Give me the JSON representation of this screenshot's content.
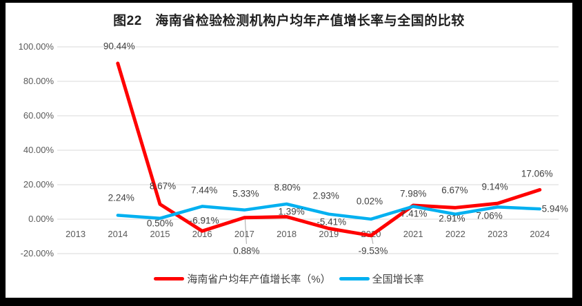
{
  "page": {
    "background": "#000000",
    "panel_background": "#FFFFFF"
  },
  "chart_data": {
    "type": "line",
    "title": "图22　海南省检验检测机构户均年产值增长率与全国的比较",
    "categories": [
      "2013",
      "2014",
      "2015",
      "2016",
      "2017",
      "2018",
      "2019",
      "2020",
      "2021",
      "2022",
      "2023",
      "2024"
    ],
    "series": [
      {
        "name": "海南省户均年产值增长率（%）",
        "color": "#FF0000",
        "values": [
          null,
          90.44,
          8.67,
          -6.91,
          0.88,
          1.39,
          -5.41,
          -9.53,
          7.98,
          6.67,
          9.14,
          17.06
        ],
        "point_labels": [
          "",
          "90.44%",
          "8.67%",
          "-6.91%",
          "0.88%",
          "1.39%",
          "-5.41%",
          "-9.53%",
          "7.98%",
          "6.67%",
          "9.14%",
          "17.06%"
        ]
      },
      {
        "name": "全国增长率",
        "color": "#00B0F0",
        "values": [
          null,
          2.24,
          0.5,
          7.44,
          5.33,
          8.8,
          2.93,
          0.02,
          7.41,
          2.91,
          7.06,
          5.94
        ],
        "point_labels": [
          "",
          "2.24%",
          "0.50%",
          "7.44%",
          "5.33%",
          "8.80%",
          "2.93%",
          "0.02%",
          "7.41%",
          "2.91%",
          "7.06%",
          "5.94%"
        ]
      }
    ],
    "y_axis": {
      "min": -20,
      "max": 100,
      "step": 20,
      "tick_labels": [
        "100.00%",
        "80.00%",
        "60.00%",
        "40.00%",
        "20.00%",
        "0.00%",
        "-20.00%"
      ]
    },
    "grid": true,
    "legend_position": "bottom",
    "colors": {
      "gridline": "#D9D9D9",
      "axis_text": "#595959",
      "label_text": "#404040",
      "leader_line": "#A6A6A6"
    },
    "layout_hints": {
      "label_offsets_series0": [
        null,
        [
          2,
          -25
        ],
        [
          4,
          -26
        ],
        [
          3,
          -15
        ],
        [
          3,
          48
        ],
        [
          7,
          -8
        ],
        [
          4,
          -10
        ],
        [
          3,
          22
        ],
        [
          0,
          -17
        ],
        [
          -1,
          -25
        ],
        [
          -4,
          -24
        ],
        [
          -4,
          -23
        ]
      ],
      "label_offsets_series1": [
        null,
        [
          5,
          -25
        ],
        [
          0,
          7
        ],
        [
          3,
          -23
        ],
        [
          2,
          -24
        ],
        [
          1,
          -24
        ],
        [
          -4,
          -27
        ],
        [
          -2,
          -26
        ],
        [
          1,
          11
        ],
        [
          -5,
          6
        ],
        [
          -12,
          13
        ],
        [
          22,
          0
        ]
      ],
      "leaders": [
        {
          "series": 0,
          "index": 4
        },
        {
          "series": 0,
          "index": 7
        }
      ]
    }
  }
}
